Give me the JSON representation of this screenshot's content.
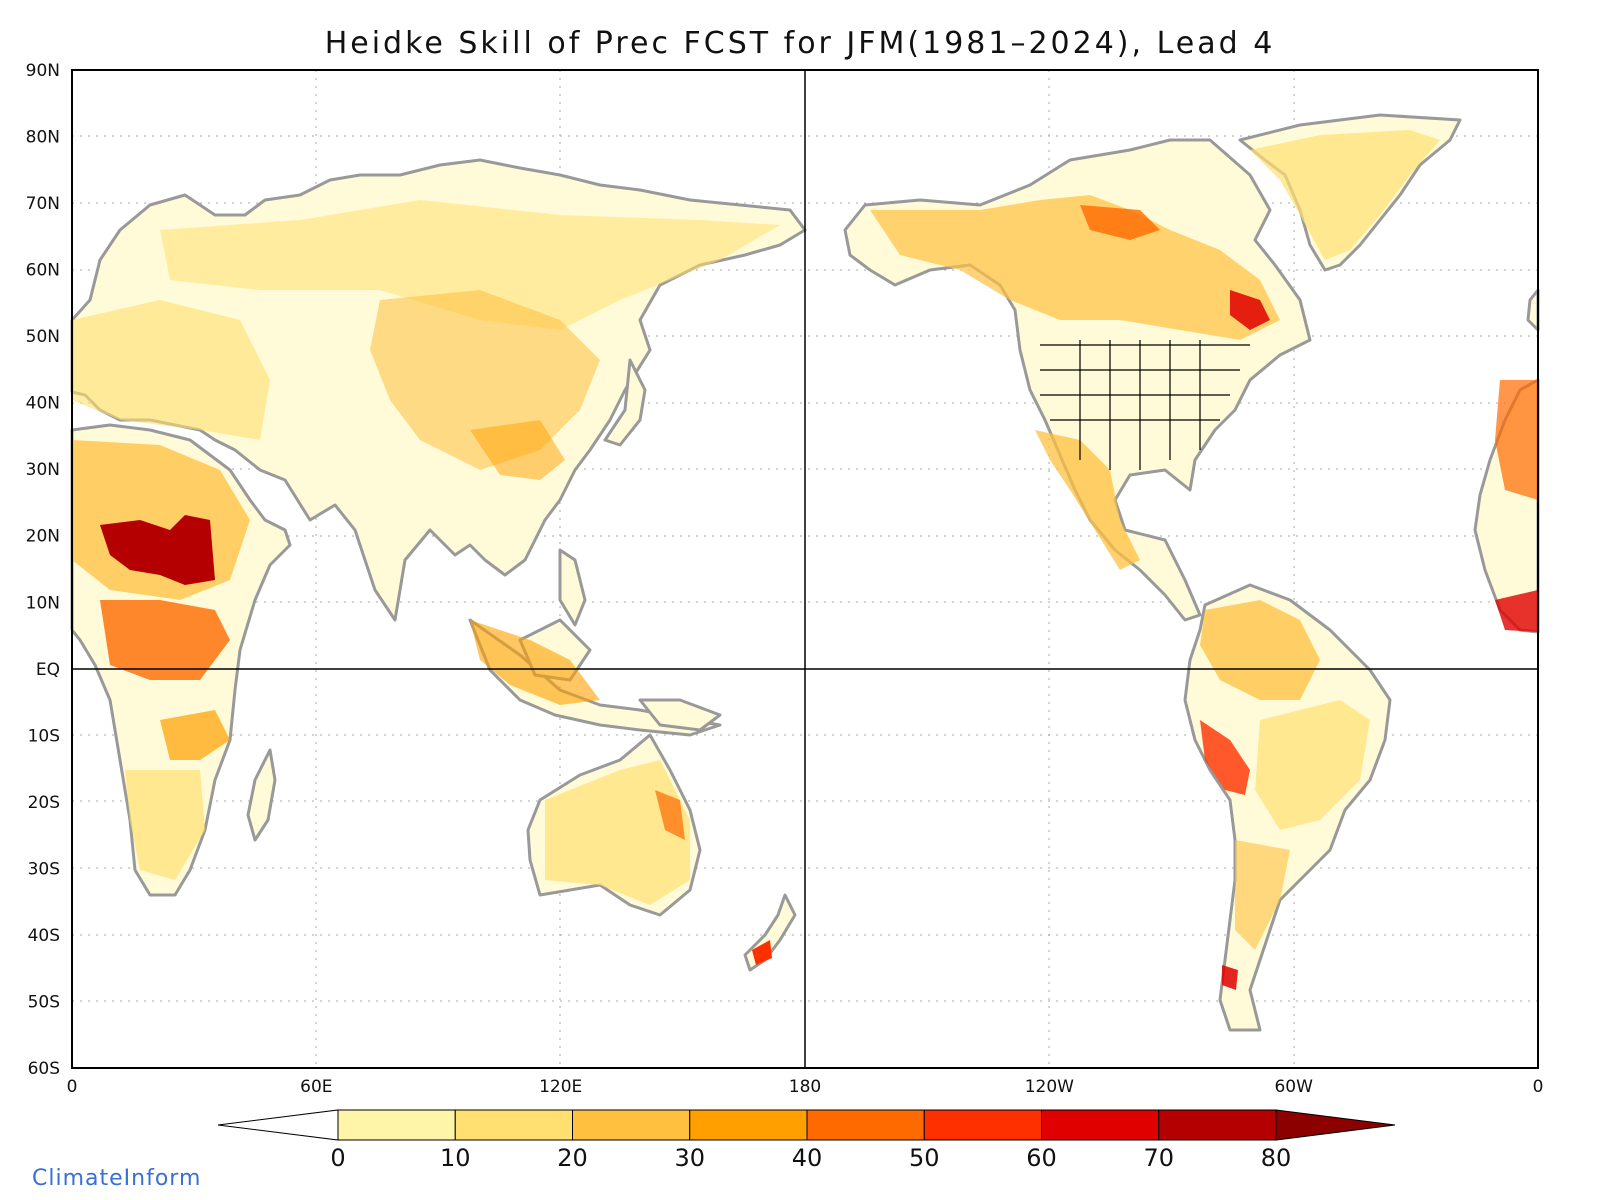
{
  "title": "Heidke Skill of Prec FCST for JFM(1981–2024), Lead 4",
  "lat_ticks": [
    "90N",
    "80N",
    "70N",
    "60N",
    "50N",
    "40N",
    "30N",
    "20N",
    "10N",
    "EQ",
    "10S",
    "20S",
    "30S",
    "40S",
    "50S",
    "60S"
  ],
  "lon_ticks": [
    "0",
    "60E",
    "120E",
    "180",
    "120W",
    "60W",
    "0"
  ],
  "colorbar": {
    "labels": [
      "0",
      "10",
      "20",
      "30",
      "40",
      "50",
      "60",
      "70",
      "80"
    ],
    "under_color": "#ffffff",
    "colors": [
      "#fff5a8",
      "#ffe070",
      "#ffc040",
      "#ffa000",
      "#ff6a00",
      "#ff3000",
      "#e00000",
      "#b40000"
    ],
    "over_color": "#8c0000"
  },
  "land_color": "#fffbd8",
  "coast_color": "#999999",
  "credit": "ClimateInform"
}
